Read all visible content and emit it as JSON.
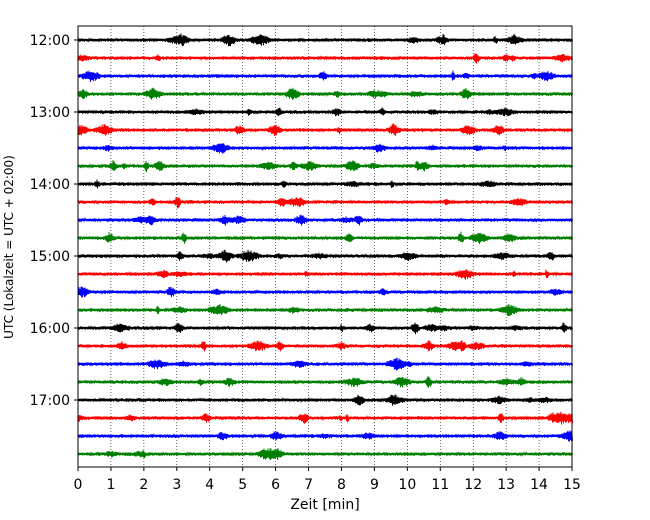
{
  "chart_data": {
    "type": "line",
    "title": "",
    "xlabel": "Zeit  [min]",
    "ylabel": "UTC (Lokalzeit = UTC + 02:00)",
    "xlim": [
      0,
      15
    ],
    "x_ticks": [
      "0",
      "1",
      "2",
      "3",
      "4",
      "5",
      "6",
      "7",
      "8",
      "9",
      "10",
      "11",
      "12",
      "13",
      "14",
      "15"
    ],
    "y_tick_labels": [
      "12:00",
      "13:00",
      "14:00",
      "15:00",
      "16:00",
      "17:00"
    ],
    "grid": "vertical dotted",
    "legend": "none",
    "series_colors": [
      "#000000",
      "#ff0000",
      "#0000ff",
      "#008000"
    ],
    "trace_start_times": [
      "12:00",
      "12:15",
      "12:30",
      "12:45",
      "13:00",
      "13:15",
      "13:30",
      "13:45",
      "14:00",
      "14:15",
      "14:30",
      "14:45",
      "15:00",
      "15:15",
      "15:30",
      "15:45",
      "16:00",
      "16:15",
      "16:30",
      "16:45",
      "17:00",
      "17:15",
      "17:30",
      "17:45"
    ],
    "trace_minutes_per_line": 15
  }
}
